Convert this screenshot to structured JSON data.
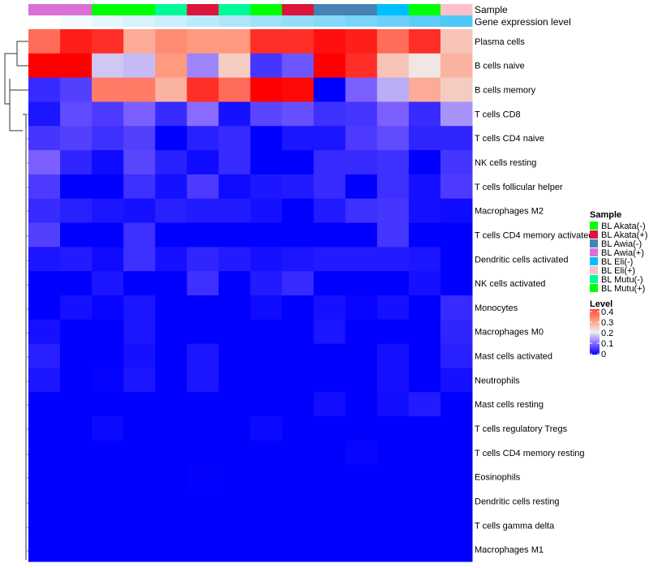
{
  "chart_data": {
    "type": "heatmap",
    "title": "",
    "annotation_labels": {
      "sample": "Sample",
      "gene_expression": "Gene expression level"
    },
    "sample_annotation": [
      "BL Awia(+)",
      "BL Awia(+)",
      "BL Akata(-)",
      "BL Mutu(+)",
      "BL Mutu(-)",
      "BL Akata(+)",
      "BL Mutu(-)",
      "BL Akata(-)",
      "BL Akata(+)",
      "BL Awia(-)",
      "BL Awia(-)",
      "BL Eli(-)",
      "BL Mutu(+)",
      "BL Eli(+)"
    ],
    "gene_expression_rank": [
      0,
      1,
      2,
      3,
      4,
      5,
      6,
      7,
      8,
      9,
      10,
      11,
      12,
      13
    ],
    "rows": [
      "Plasma cells",
      "B cells naive",
      "B cells memory",
      "T cells CD8",
      "T cells CD4 naive",
      "NK cells resting",
      "T cells follicular helper",
      "Macrophages M2",
      "T cells CD4 memory activated",
      "Dendritic cells activated",
      "NK cells activated",
      "Monocytes",
      "Macrophages M0",
      "Mast cells activated",
      "Neutrophils",
      "Mast cells resting",
      "T cells regulatory  Tregs",
      "T cells CD4 memory resting",
      "Eosinophils",
      "Dendritic cells resting",
      "T cells gamma delta",
      "Macrophages M1"
    ],
    "values": [
      [
        0.33,
        0.38,
        0.37,
        0.28,
        0.31,
        0.3,
        0.3,
        0.37,
        0.37,
        0.39,
        0.38,
        0.33,
        0.37,
        0.25
      ],
      [
        0.4,
        0.4,
        0.17,
        0.16,
        0.3,
        0.12,
        0.24,
        0.05,
        0.08,
        0.4,
        0.37,
        0.25,
        0.21,
        0.27
      ],
      [
        0.04,
        0.06,
        0.32,
        0.32,
        0.27,
        0.37,
        0.33,
        0.4,
        0.395,
        0.0,
        0.09,
        0.15,
        0.28,
        0.24
      ],
      [
        0.02,
        0.07,
        0.055,
        0.09,
        0.04,
        0.1,
        0.015,
        0.065,
        0.075,
        0.045,
        0.05,
        0.09,
        0.04,
        0.13
      ],
      [
        0.05,
        0.06,
        0.045,
        0.06,
        0.0,
        0.03,
        0.04,
        0.0,
        0.02,
        0.02,
        0.055,
        0.07,
        0.035,
        0.035
      ],
      [
        0.09,
        0.035,
        0.01,
        0.065,
        0.03,
        0.01,
        0.04,
        0.0,
        0.0,
        0.04,
        0.04,
        0.045,
        0.0,
        0.05
      ],
      [
        0.055,
        0.0,
        0.0,
        0.045,
        0.015,
        0.055,
        0.01,
        0.02,
        0.025,
        0.04,
        0.0,
        0.045,
        0.015,
        0.055
      ],
      [
        0.04,
        0.03,
        0.02,
        0.015,
        0.03,
        0.025,
        0.025,
        0.015,
        0.0,
        0.025,
        0.045,
        0.05,
        0.015,
        0.01
      ],
      [
        0.06,
        0.0,
        0.0,
        0.045,
        0.0,
        0.0,
        0.0,
        0.0,
        0.0,
        0.0,
        0.0,
        0.05,
        0.0,
        0.0
      ],
      [
        0.02,
        0.025,
        0.01,
        0.045,
        0.015,
        0.035,
        0.025,
        0.015,
        0.02,
        0.025,
        0.025,
        0.025,
        0.02,
        0.0
      ],
      [
        0.0,
        0.0,
        0.02,
        0.0,
        0.0,
        0.045,
        0.0,
        0.025,
        0.04,
        0.0,
        0.0,
        0.0,
        0.015,
        0.0
      ],
      [
        0.0,
        0.015,
        0.005,
        0.02,
        0.0,
        0.0,
        0.0,
        0.01,
        0.0,
        0.015,
        0.005,
        0.015,
        0.0,
        0.04
      ],
      [
        0.015,
        0.0,
        0.0,
        0.02,
        0.0,
        0.0,
        0.0,
        0.0,
        0.0,
        0.02,
        0.0,
        0.0,
        0.0,
        0.035
      ],
      [
        0.03,
        0.0,
        0.0,
        0.015,
        0.0,
        0.02,
        0.0,
        0.0,
        0.0,
        0.0,
        0.0,
        0.015,
        0.0,
        0.03
      ],
      [
        0.02,
        0.0,
        0.003,
        0.02,
        0.0,
        0.02,
        0.0,
        0.0,
        0.0,
        0.0,
        0.0,
        0.015,
        0.0,
        0.015
      ],
      [
        0.0,
        0.0,
        0.0,
        0.0,
        0.0,
        0.0,
        0.0,
        0.0,
        0.0,
        0.012,
        0.0,
        0.012,
        0.025,
        0.0
      ],
      [
        0.0,
        0.0,
        0.008,
        0.0,
        0.0,
        0.0,
        0.0,
        0.008,
        0.0,
        0.0,
        0.0,
        0.0,
        0.0,
        0.0
      ],
      [
        0.0,
        0.0,
        0.0,
        0.0,
        0.0,
        0.0,
        0.0,
        0.0,
        0.0,
        0.0,
        0.005,
        0.0,
        0.0,
        0.0
      ],
      [
        0.0,
        0.0,
        0.0,
        0.0,
        0.0,
        0.002,
        0.0,
        0.0,
        0.0,
        0.0,
        0.0,
        0.0,
        0.0,
        0.0
      ],
      [
        0,
        0,
        0,
        0,
        0,
        0,
        0,
        0,
        0,
        0,
        0,
        0,
        0,
        0
      ],
      [
        0,
        0,
        0,
        0,
        0,
        0,
        0,
        0,
        0,
        0,
        0,
        0,
        0,
        0
      ],
      [
        0,
        0,
        0,
        0,
        0,
        0,
        0,
        0,
        0,
        0,
        0,
        0,
        0,
        0
      ]
    ],
    "color_range": [
      0,
      0.4
    ],
    "legend": {
      "sample_title": "Sample",
      "samples": [
        {
          "label": "BL Akata(-)",
          "color": "#00ff00"
        },
        {
          "label": "BL Akata(+)",
          "color": "#dc143c"
        },
        {
          "label": "BL Awia(-)",
          "color": "#4682b4"
        },
        {
          "label": "BL Awia(+)",
          "color": "#da70d6"
        },
        {
          "label": "BL Eli(-)",
          "color": "#00bfff"
        },
        {
          "label": "BL Eli(+)",
          "color": "#ffc0cb"
        },
        {
          "label": "BL Mutu(-)",
          "color": "#00fa9a"
        },
        {
          "label": "BL Mutu(+)",
          "color": "#00ff00"
        }
      ],
      "level_title": "Level",
      "level_ticks": [
        "0.4",
        "0.3",
        "0.2",
        "0.1",
        "0"
      ],
      "placement": "right"
    },
    "gene_expression_colors": [
      "#ffffff",
      "#4fc8f5"
    ]
  }
}
